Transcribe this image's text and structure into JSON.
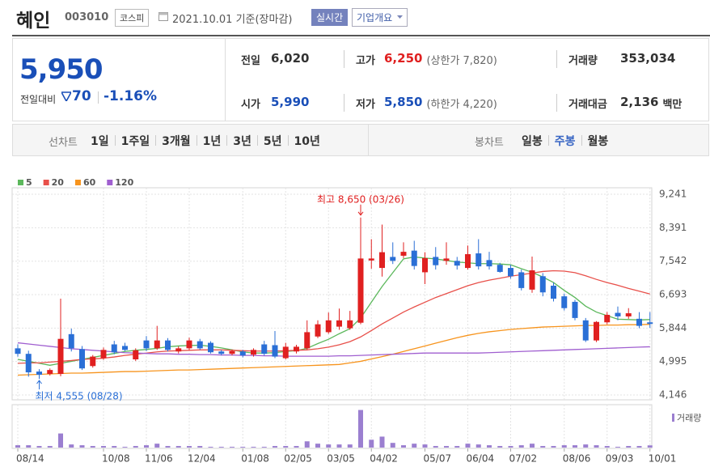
{
  "header": {
    "name": "혜인",
    "code": "003010",
    "market": "코스피",
    "date": "2021.10.01 기준(장마감)",
    "realtime": "실시간",
    "overview": "기업개요"
  },
  "quote": {
    "price": "5,950",
    "change_label": "전일대비",
    "change": "70",
    "change_rate": "-1.16%",
    "color": "#1a4fb8",
    "items": [
      {
        "label": "전일",
        "value": "6,020",
        "color": "#333333"
      },
      {
        "label": "고가",
        "value": "6,250",
        "note": "(상한가 7,820)",
        "color": "#e02020"
      },
      {
        "label": "거래량",
        "value": "353,034",
        "color": "#333333"
      },
      {
        "label": "시가",
        "value": "5,990",
        "color": "#1a4fb8"
      },
      {
        "label": "저가",
        "value": "5,850",
        "note": "(하한가 4,220)",
        "color": "#1a4fb8"
      },
      {
        "label": "거래대금",
        "value": "2,136",
        "unit": "백만",
        "color": "#333333"
      }
    ]
  },
  "toolbar": {
    "line_label": "선차트",
    "periods": [
      "1일",
      "1주일",
      "3개월",
      "1년",
      "3년",
      "5년",
      "10년"
    ],
    "candle_label": "봉차트",
    "candle_periods": [
      "일봉",
      "주봉",
      "월봉"
    ],
    "selected_candle": 1
  },
  "chart_data": {
    "type": "candlestick",
    "up_color": "#e02020",
    "down_color": "#2a6fd6",
    "categories": [
      "08/14",
      null,
      null,
      null,
      null,
      null,
      null,
      null,
      "10/08",
      null,
      null,
      null,
      "11/06",
      null,
      null,
      null,
      "12/04",
      null,
      null,
      null,
      null,
      "01/08",
      null,
      null,
      null,
      "02/05",
      null,
      null,
      null,
      "03/05",
      null,
      null,
      null,
      "04/02",
      null,
      null,
      null,
      null,
      "05/07",
      null,
      null,
      null,
      "06/04",
      null,
      null,
      null,
      "07/02",
      null,
      null,
      null,
      null,
      "08/06",
      null,
      null,
      null,
      "09/03",
      null,
      null,
      null,
      "10/01"
    ],
    "open": [
      5330,
      5190,
      4740,
      4680,
      4680,
      5690,
      5310,
      4880,
      5080,
      5430,
      5390,
      5050,
      5530,
      5330,
      5530,
      5250,
      5330,
      5510,
      5470,
      5250,
      5190,
      5250,
      5170,
      5430,
      5410,
      5080,
      5250,
      5330,
      5630,
      5740,
      5880,
      5840,
      5980,
      7560,
      7370,
      7650,
      7680,
      7810,
      7260,
      7650,
      7550,
      7550,
      7370,
      7740,
      7570,
      7450,
      7370,
      7260,
      6820,
      7160,
      6920,
      6650,
      6510,
      6040,
      5530,
      5990,
      6230,
      6140,
      6080,
      5990
    ],
    "high": [
      5430,
      5270,
      4800,
      4820,
      6590,
      5830,
      5390,
      5160,
      5350,
      5520,
      5470,
      5330,
      5640,
      5900,
      5590,
      5380,
      5600,
      5570,
      5510,
      5290,
      5300,
      5290,
      5330,
      5520,
      5770,
      5470,
      5420,
      6040,
      6040,
      6240,
      6340,
      6280,
      8650,
      8100,
      8470,
      8020,
      8020,
      8060,
      7770,
      7900,
      8020,
      7650,
      7940,
      8100,
      7780,
      7500,
      7450,
      7330,
      7660,
      7240,
      7000,
      6720,
      6560,
      6100,
      6020,
      6250,
      6390,
      6350,
      6250,
      6250
    ],
    "low": [
      5120,
      4610,
      4555,
      4640,
      4620,
      5250,
      4780,
      4840,
      5040,
      5180,
      5260,
      5010,
      5260,
      5290,
      5250,
      5200,
      5290,
      5290,
      5200,
      5150,
      5150,
      5100,
      5120,
      5150,
      5080,
      5050,
      5200,
      5290,
      5590,
      5700,
      5800,
      5800,
      5940,
      7350,
      7150,
      7470,
      7620,
      7330,
      6960,
      7330,
      7450,
      7330,
      7330,
      7330,
      7330,
      7250,
      7100,
      6800,
      6740,
      6650,
      6520,
      6290,
      6040,
      5490,
      5490,
      5940,
      6040,
      6080,
      5840,
      5850
    ],
    "close": [
      5190,
      4720,
      4660,
      4780,
      5570,
      5330,
      4820,
      5120,
      5290,
      5230,
      5290,
      5280,
      5330,
      5530,
      5290,
      5330,
      5530,
      5330,
      5230,
      5190,
      5260,
      5150,
      5290,
      5190,
      5120,
      5370,
      5370,
      5740,
      5940,
      6040,
      6040,
      6040,
      7610,
      7610,
      7770,
      7550,
      7780,
      7420,
      7620,
      7440,
      7610,
      7430,
      7720,
      7410,
      7410,
      7270,
      7160,
      6860,
      7310,
      6750,
      6590,
      6350,
      6100,
      5530,
      6000,
      6180,
      6140,
      6220,
      5900,
      5950
    ],
    "series": [
      {
        "name": "5",
        "color": "#5cb85c",
        "values": [
          5050,
          5000,
          4950,
          4900,
          4950,
          5000,
          5050,
          5100,
          5150,
          5200,
          5250,
          5280,
          5300,
          5330,
          5370,
          5390,
          5400,
          5410,
          5380,
          5340,
          5290,
          5240,
          5210,
          5210,
          5220,
          5250,
          5270,
          5330,
          5450,
          5560,
          5700,
          5830,
          6100,
          6500,
          6900,
          7250,
          7600,
          7650,
          7620,
          7600,
          7560,
          7520,
          7500,
          7480,
          7480,
          7470,
          7450,
          7350,
          7260,
          7140,
          7000,
          6800,
          6620,
          6400,
          6250,
          6160,
          6070,
          6060,
          6050,
          6060
        ]
      },
      {
        "name": "20",
        "color": "#e8504a",
        "values": [
          4950,
          4960,
          4960,
          4980,
          5000,
          5020,
          5050,
          5060,
          5080,
          5110,
          5150,
          5180,
          5210,
          5240,
          5260,
          5270,
          5280,
          5290,
          5290,
          5290,
          5280,
          5270,
          5260,
          5260,
          5260,
          5270,
          5280,
          5290,
          5320,
          5360,
          5420,
          5500,
          5620,
          5780,
          5950,
          6100,
          6250,
          6380,
          6500,
          6620,
          6720,
          6820,
          6920,
          7000,
          7060,
          7110,
          7160,
          7200,
          7240,
          7280,
          7300,
          7290,
          7250,
          7170,
          7080,
          7000,
          6930,
          6850,
          6780,
          6710
        ]
      },
      {
        "name": "60",
        "color": "#f7941d",
        "values": [
          4650,
          4660,
          4670,
          4680,
          4690,
          4700,
          4700,
          4710,
          4720,
          4730,
          4740,
          4740,
          4750,
          4760,
          4770,
          4780,
          4780,
          4790,
          4800,
          4810,
          4820,
          4830,
          4840,
          4850,
          4860,
          4870,
          4880,
          4890,
          4900,
          4910,
          4920,
          4960,
          5000,
          5060,
          5120,
          5180,
          5250,
          5320,
          5390,
          5460,
          5530,
          5600,
          5660,
          5710,
          5750,
          5780,
          5810,
          5830,
          5850,
          5870,
          5880,
          5890,
          5900,
          5910,
          5910,
          5920,
          5920,
          5930,
          5930,
          5940
        ]
      },
      {
        "name": "120",
        "color": "#a05fd0",
        "values": [
          5470,
          5440,
          5410,
          5380,
          5350,
          5320,
          5300,
          5280,
          5260,
          5240,
          5220,
          5210,
          5200,
          5190,
          5190,
          5180,
          5180,
          5170,
          5170,
          5160,
          5160,
          5150,
          5150,
          5140,
          5140,
          5130,
          5130,
          5130,
          5130,
          5130,
          5140,
          5140,
          5150,
          5160,
          5170,
          5180,
          5190,
          5200,
          5210,
          5210,
          5210,
          5210,
          5210,
          5210,
          5220,
          5230,
          5240,
          5250,
          5260,
          5270,
          5280,
          5290,
          5300,
          5310,
          5320,
          5330,
          5340,
          5350,
          5360,
          5370
        ]
      }
    ],
    "ylim": [
      4146,
      9241
    ],
    "yticks": [
      {
        "value": 9241,
        "label": "9,241"
      },
      {
        "value": 8391,
        "label": "8,391"
      },
      {
        "value": 7542,
        "label": "7,542"
      },
      {
        "value": 6693,
        "label": "6,693"
      },
      {
        "value": 5844,
        "label": "5,844"
      },
      {
        "value": 4995,
        "label": "4,995"
      },
      {
        "value": 4146,
        "label": "4,146"
      }
    ],
    "grid": true,
    "volume": {
      "name": "거래량",
      "color": "#9b7fd0",
      "ylim": [
        0,
        6200000
      ],
      "values": [
        375000,
        375000,
        250000,
        250000,
        2250000,
        500000,
        375000,
        250000,
        250000,
        250000,
        125000,
        250000,
        375000,
        625000,
        250000,
        250000,
        250000,
        250000,
        125000,
        125000,
        125000,
        125000,
        125000,
        125000,
        250000,
        250000,
        250000,
        1000000,
        625000,
        500000,
        500000,
        500000,
        6000000,
        1250000,
        1750000,
        750000,
        375000,
        625000,
        500000,
        250000,
        250000,
        250000,
        625000,
        500000,
        375000,
        250000,
        250000,
        375000,
        625000,
        250000,
        250000,
        375000,
        375000,
        500000,
        375000,
        250000,
        125000,
        250000,
        250000,
        353034
      ]
    },
    "annotations": [
      {
        "text": "최고 8,650 (03/26)",
        "value": 8650,
        "kind": "high",
        "color": "#e02020"
      },
      {
        "text": "최저 4,555 (08/28)",
        "value": 4555,
        "kind": "low",
        "color": "#2a6fd6"
      }
    ]
  }
}
